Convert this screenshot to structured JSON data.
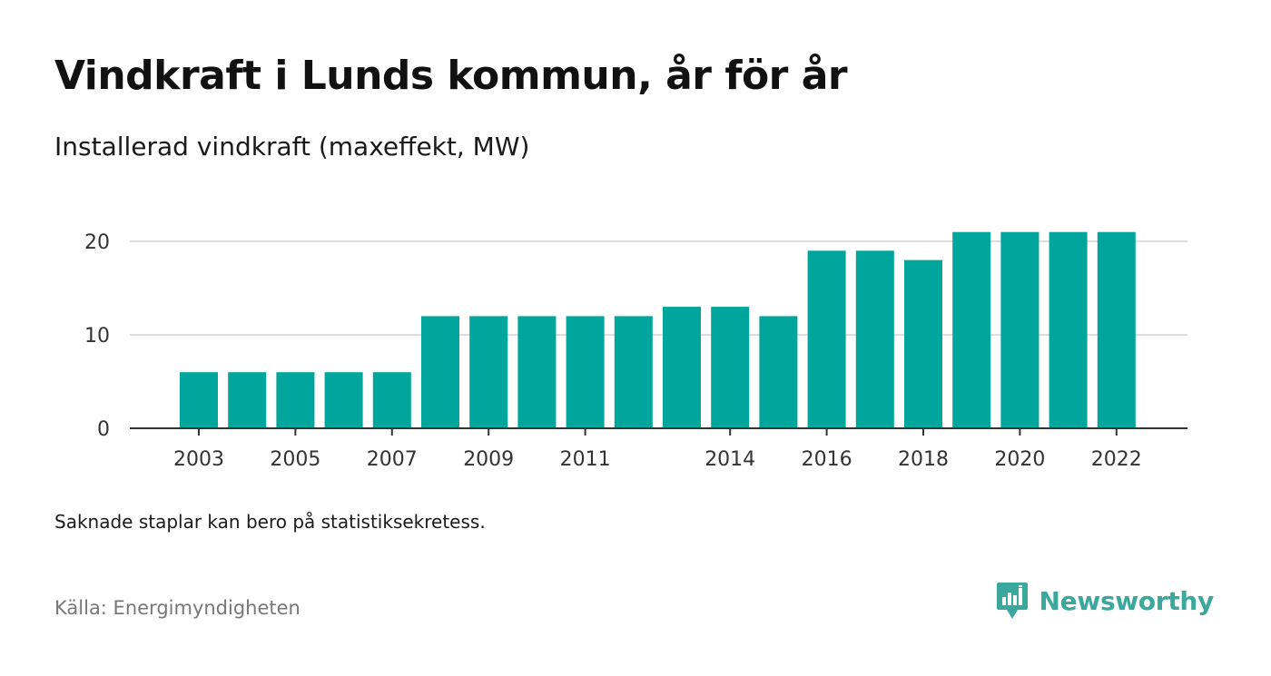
{
  "title": "Vindkraft i Lunds kommun, år för år",
  "subtitle": "Installerad vindkraft (maxeffekt, MW)",
  "note": "Saknade staplar kan bero på statistiksekretess.",
  "source": "Källa: Energimyndigheten",
  "brand": {
    "name": "Newsworthy",
    "icon": "newsworthy-logo-icon",
    "color": "#3aa89c"
  },
  "chart_data": {
    "type": "bar",
    "categories": [
      "2003",
      "2004",
      "2005",
      "2006",
      "2007",
      "2008",
      "2009",
      "2010",
      "2011",
      "2012",
      "2013",
      "2014",
      "2015",
      "2016",
      "2017",
      "2018",
      "2019",
      "2020",
      "2021",
      "2022"
    ],
    "values": [
      6,
      6,
      6,
      6,
      6,
      12,
      12,
      12,
      12,
      12,
      13,
      13,
      12,
      19,
      19,
      18,
      21,
      21,
      21,
      21
    ],
    "x_tick_labels": [
      "2003",
      "2005",
      "2007",
      "2009",
      "2011",
      "2014",
      "2016",
      "2018",
      "2020",
      "2022"
    ],
    "y_ticks": [
      0,
      10,
      20
    ],
    "ylim": [
      0,
      21
    ],
    "xlabel": "",
    "ylabel": "",
    "grid": true,
    "bar_color": "#00a59b"
  }
}
